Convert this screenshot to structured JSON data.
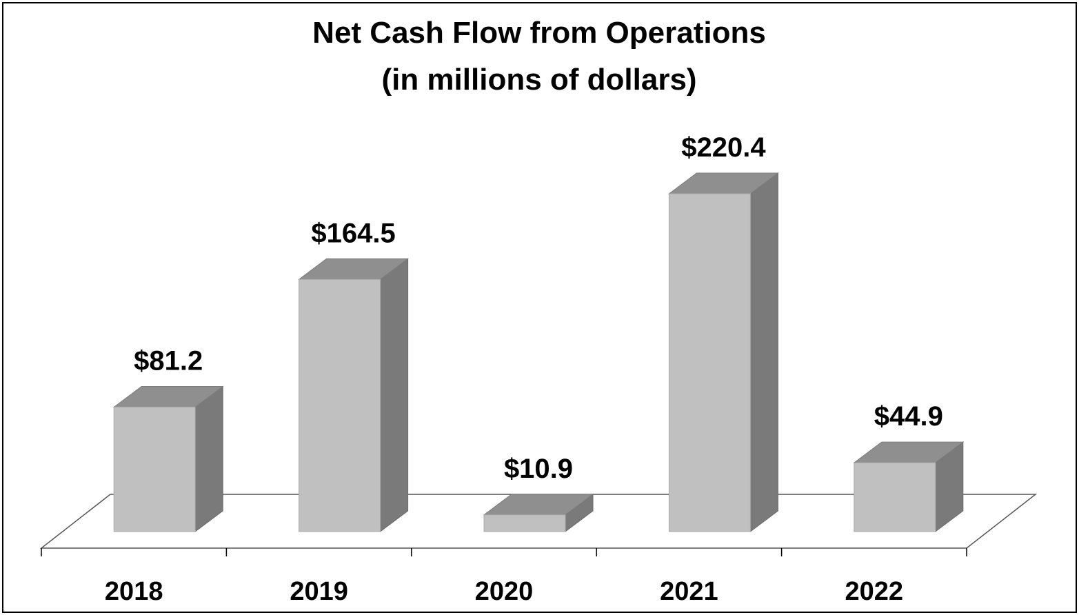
{
  "chart_data": {
    "type": "bar",
    "style": "3d-column",
    "title": [
      "Net Cash Flow from Operations",
      "(in millions of dollars)"
    ],
    "categories": [
      "2018",
      "2019",
      "2020",
      "2021",
      "2022"
    ],
    "values": [
      81.2,
      164.5,
      10.9,
      220.4,
      44.9
    ],
    "data_labels": [
      "$81.2",
      "$164.5",
      "$10.9",
      "$220.4",
      "$44.9"
    ],
    "xlabel": "",
    "ylabel": "",
    "ylim": [
      0,
      220.4
    ],
    "grid": false,
    "legend": "none",
    "colors": {
      "bar_front": "#c0c0c0",
      "bar_top": "#8f8f8f",
      "bar_side": "#7a7a7a",
      "floor_line": "#555555",
      "text": "#000000"
    }
  }
}
